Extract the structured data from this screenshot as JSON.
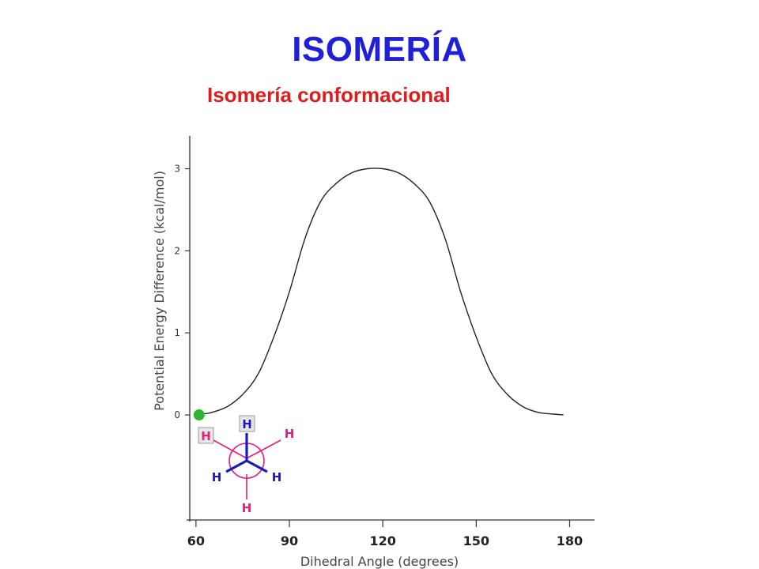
{
  "slide": {
    "title": "ISOMERÍA",
    "subtitle": "Isomería conformacional"
  },
  "chart_data": {
    "type": "line",
    "xlabel": "Dihedral Angle (degrees)",
    "ylabel": "Potential Energy Difference (kcal/mol)",
    "xticks": [
      "60",
      "90",
      "120",
      "150",
      "180"
    ],
    "yticks": [
      "0",
      "1",
      "2",
      "3"
    ],
    "xlim": [
      58,
      188
    ],
    "ylim": [
      -1.3,
      3.4
    ],
    "grid": false,
    "series": [
      {
        "x": [
          60,
          62,
          65,
          70,
          75,
          80,
          85,
          90,
          95,
          100,
          105,
          110,
          115,
          120,
          125,
          130,
          135,
          140,
          145,
          150,
          155,
          160,
          165,
          170,
          175,
          178
        ],
        "y": [
          0.0,
          0.01,
          0.03,
          0.1,
          0.25,
          0.5,
          0.95,
          1.5,
          2.15,
          2.6,
          2.82,
          2.95,
          3.0,
          3.0,
          2.95,
          2.82,
          2.6,
          2.15,
          1.5,
          0.95,
          0.5,
          0.25,
          0.1,
          0.03,
          0.01,
          0.0
        ],
        "color": "#222222"
      }
    ],
    "marker": {
      "x": 61,
      "y": 0,
      "color": "#2db52d"
    }
  },
  "newman": {
    "front_labels": [
      "H",
      "H",
      "H"
    ],
    "back_labels": [
      "H",
      "H",
      "H"
    ],
    "front_color": "#1a1ab8",
    "back_color": "#e0207a"
  }
}
